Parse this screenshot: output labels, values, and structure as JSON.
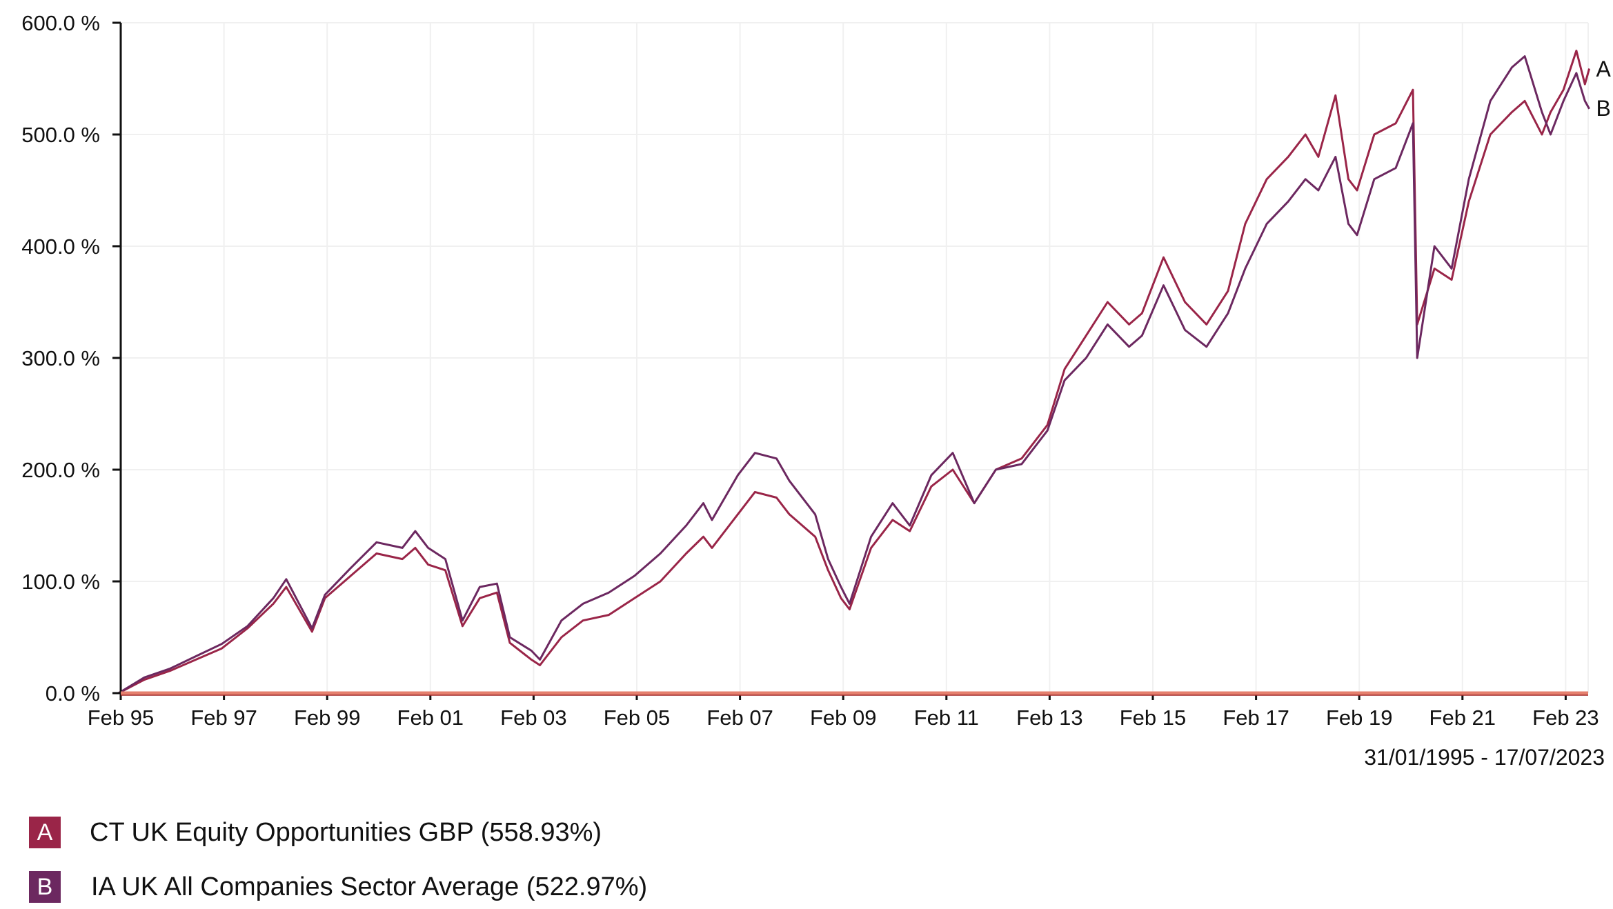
{
  "chart_data": {
    "type": "line",
    "title": "",
    "xlabel": "",
    "ylabel": "",
    "date_range": "31/01/1995 - 17/07/2023",
    "ylim": [
      0,
      600
    ],
    "yticks": [
      "0.0 %",
      "100.0 %",
      "200.0 %",
      "300.0 %",
      "400.0 %",
      "500.0 %",
      "600.0 %"
    ],
    "xticks": [
      "Feb 95",
      "Feb 97",
      "Feb 99",
      "Feb 01",
      "Feb 03",
      "Feb 05",
      "Feb 07",
      "Feb 09",
      "Feb 11",
      "Feb 13",
      "Feb 15",
      "Feb 17",
      "Feb 19",
      "Feb 21",
      "Feb 23"
    ],
    "grid": true,
    "legend_position": "bottom-left",
    "x": [
      "1995-01",
      "1995-07",
      "1996-01",
      "1996-07",
      "1997-01",
      "1997-07",
      "1998-01",
      "1998-04",
      "1998-10",
      "1999-01",
      "1999-07",
      "2000-01",
      "2000-07",
      "2000-10",
      "2001-01",
      "2001-05",
      "2001-09",
      "2002-01",
      "2002-05",
      "2002-08",
      "2003-01",
      "2003-03",
      "2003-08",
      "2004-01",
      "2004-07",
      "2005-01",
      "2005-07",
      "2006-01",
      "2006-05",
      "2006-07",
      "2007-01",
      "2007-05",
      "2007-10",
      "2008-01",
      "2008-07",
      "2008-10",
      "2009-01",
      "2009-03",
      "2009-08",
      "2010-01",
      "2010-05",
      "2010-10",
      "2011-03",
      "2011-08",
      "2012-01",
      "2012-07",
      "2013-01",
      "2013-05",
      "2013-10",
      "2014-03",
      "2014-08",
      "2014-11",
      "2015-04",
      "2015-09",
      "2016-02",
      "2016-07",
      "2016-11",
      "2017-04",
      "2017-09",
      "2018-01",
      "2018-04",
      "2018-08",
      "2018-11",
      "2019-01",
      "2019-05",
      "2019-10",
      "2020-02",
      "2020-03",
      "2020-07",
      "2020-11",
      "2021-03",
      "2021-08",
      "2022-01",
      "2022-04",
      "2022-08",
      "2022-10",
      "2023-01",
      "2023-04",
      "2023-06",
      "2023-07"
    ],
    "series": [
      {
        "label": "A",
        "name": "CT UK Equity Opportunities GBP (558.93%)",
        "color": "#9a2548",
        "values": [
          0,
          12,
          20,
          30,
          40,
          58,
          80,
          95,
          55,
          85,
          105,
          125,
          120,
          130,
          115,
          110,
          60,
          85,
          90,
          45,
          30,
          25,
          50,
          65,
          70,
          85,
          100,
          125,
          140,
          130,
          160,
          180,
          175,
          160,
          140,
          110,
          85,
          75,
          130,
          155,
          145,
          185,
          200,
          170,
          200,
          210,
          240,
          290,
          320,
          350,
          330,
          340,
          390,
          350,
          330,
          360,
          420,
          460,
          480,
          500,
          480,
          535,
          460,
          450,
          500,
          510,
          540,
          330,
          380,
          370,
          440,
          500,
          520,
          530,
          500,
          520,
          540,
          575,
          545,
          558.93
        ]
      },
      {
        "label": "B",
        "name": "IA UK All Companies Sector Average (522.97%)",
        "color": "#6c2860",
        "values": [
          0,
          14,
          22,
          33,
          44,
          60,
          85,
          102,
          58,
          88,
          112,
          135,
          130,
          145,
          130,
          120,
          65,
          95,
          98,
          50,
          38,
          30,
          65,
          80,
          90,
          105,
          125,
          150,
          170,
          155,
          195,
          215,
          210,
          190,
          160,
          120,
          95,
          80,
          140,
          170,
          150,
          195,
          215,
          170,
          200,
          205,
          235,
          280,
          300,
          330,
          310,
          320,
          365,
          325,
          310,
          340,
          380,
          420,
          440,
          460,
          450,
          480,
          420,
          410,
          460,
          470,
          510,
          300,
          400,
          380,
          460,
          530,
          560,
          570,
          520,
          500,
          530,
          555,
          530,
          522.97
        ]
      }
    ]
  }
}
